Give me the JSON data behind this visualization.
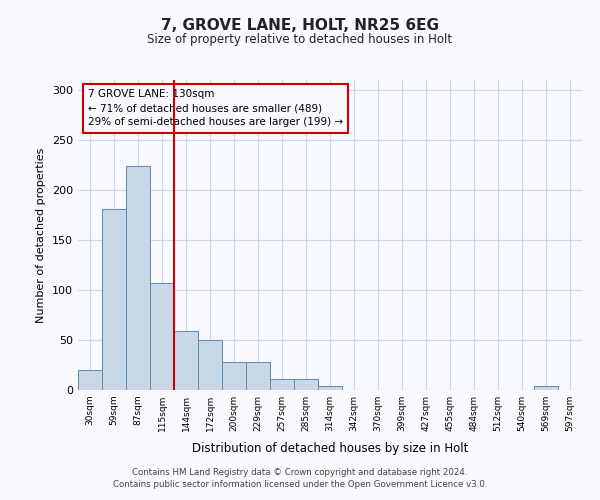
{
  "title": "7, GROVE LANE, HOLT, NR25 6EG",
  "subtitle": "Size of property relative to detached houses in Holt",
  "xlabel": "Distribution of detached houses by size in Holt",
  "ylabel": "Number of detached properties",
  "footer_line1": "Contains HM Land Registry data © Crown copyright and database right 2024.",
  "footer_line2": "Contains public sector information licensed under the Open Government Licence v3.0.",
  "categories": [
    "30sqm",
    "59sqm",
    "87sqm",
    "115sqm",
    "144sqm",
    "172sqm",
    "200sqm",
    "229sqm",
    "257sqm",
    "285sqm",
    "314sqm",
    "342sqm",
    "370sqm",
    "399sqm",
    "427sqm",
    "455sqm",
    "484sqm",
    "512sqm",
    "540sqm",
    "569sqm",
    "597sqm"
  ],
  "values": [
    20,
    181,
    224,
    107,
    59,
    50,
    28,
    28,
    11,
    11,
    4,
    0,
    0,
    0,
    0,
    0,
    0,
    0,
    0,
    4,
    0
  ],
  "bar_color": "#c8d8e8",
  "bar_edge_color": "#5b8ab5",
  "annotation_text_line1": "7 GROVE LANE: 130sqm",
  "annotation_text_line2": "← 71% of detached houses are smaller (489)",
  "annotation_text_line3": "29% of semi-detached houses are larger (199) →",
  "vline_color": "#cc0000",
  "annotation_box_edge_color": "#cc0000",
  "bg_color": "#f8f8ff",
  "grid_color": "#d0d8e8",
  "ylim": [
    0,
    310
  ],
  "yticks": [
    0,
    50,
    100,
    150,
    200,
    250,
    300
  ]
}
